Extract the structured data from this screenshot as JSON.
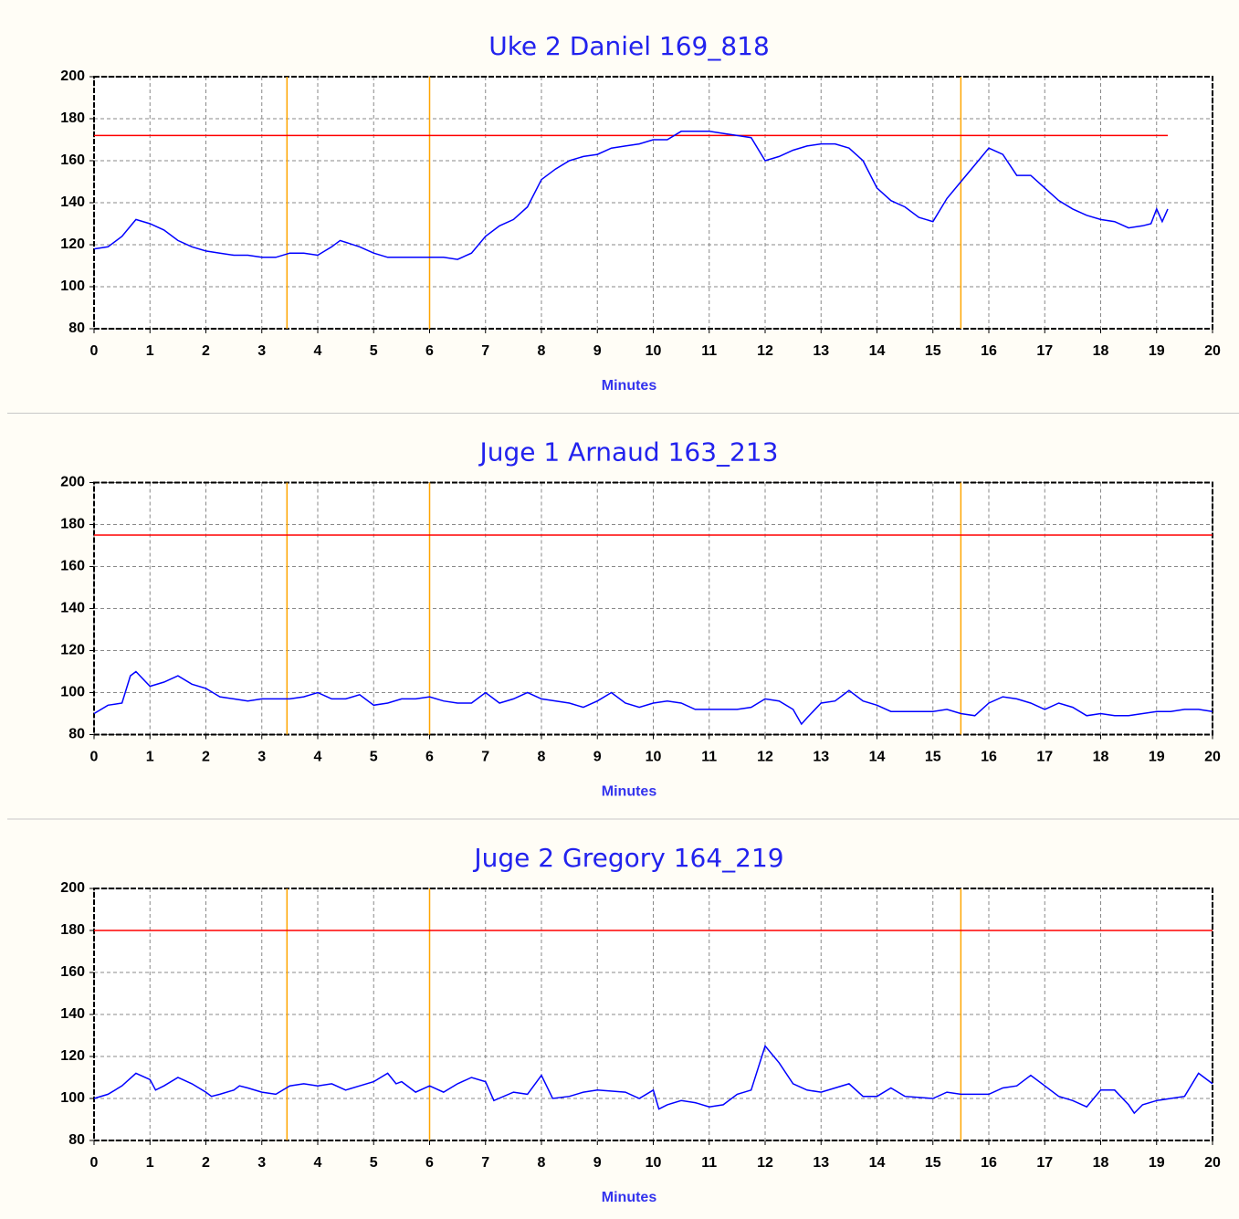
{
  "chart_data": [
    {
      "type": "line",
      "title": "Uke 2 Daniel 169_818",
      "xlabel": "Minutes",
      "xlim": [
        0,
        20
      ],
      "xticks": [
        0,
        1,
        2,
        3,
        4,
        5,
        6,
        7,
        8,
        9,
        10,
        11,
        12,
        13,
        14,
        15,
        16,
        17,
        18,
        19,
        20
      ],
      "ylim": [
        80,
        200
      ],
      "yticks": [
        80,
        100,
        120,
        140,
        160,
        180,
        200
      ],
      "grid": true,
      "threshold": 172,
      "threshold_color": "#ff0000",
      "threshold_end": 19.2,
      "markers": [
        3.45,
        6,
        15.5
      ],
      "marker_color": "#ffa500",
      "x": [
        0,
        0.25,
        0.5,
        0.75,
        1,
        1.25,
        1.5,
        1.75,
        2,
        2.25,
        2.5,
        2.75,
        3,
        3.25,
        3.5,
        3.75,
        4,
        4.25,
        4.4,
        4.75,
        5,
        5.25,
        5.5,
        5.75,
        6,
        6.25,
        6.5,
        6.75,
        7,
        7.25,
        7.5,
        7.75,
        8,
        8.25,
        8.5,
        8.75,
        9,
        9.25,
        9.5,
        9.75,
        10,
        10.25,
        10.5,
        10.75,
        11,
        11.25,
        11.5,
        11.75,
        12,
        12.25,
        12.5,
        12.75,
        13,
        13.25,
        13.5,
        13.75,
        14,
        14.25,
        14.5,
        14.75,
        15,
        15.25,
        15.5,
        15.75,
        16,
        16.25,
        16.5,
        16.75,
        17,
        17.25,
        17.5,
        17.75,
        18,
        18.25,
        18.5,
        18.75,
        18.9,
        19,
        19.1,
        19.2
      ],
      "series": [
        {
          "color": "#0000ff",
          "values": [
            118,
            119,
            124,
            132,
            130,
            127,
            122,
            119,
            117,
            116,
            115,
            115,
            114,
            114,
            116,
            116,
            115,
            119,
            122,
            119,
            116,
            114,
            114,
            114,
            114,
            114,
            113,
            116,
            124,
            129,
            132,
            138,
            151,
            156,
            160,
            162,
            163,
            166,
            167,
            168,
            170,
            170,
            174,
            174,
            174,
            173,
            172,
            171,
            160,
            162,
            165,
            167,
            168,
            168,
            166,
            160,
            147,
            141,
            138,
            133,
            131,
            142,
            150,
            158,
            166,
            163,
            153,
            153,
            147,
            141,
            137,
            134,
            132,
            131,
            128,
            129,
            130,
            137,
            131,
            137
          ]
        }
      ]
    },
    {
      "type": "line",
      "title": "Juge 1 Arnaud 163_213",
      "xlabel": "Minutes",
      "xlim": [
        0,
        20
      ],
      "xticks": [
        0,
        1,
        2,
        3,
        4,
        5,
        6,
        7,
        8,
        9,
        10,
        11,
        12,
        13,
        14,
        15,
        16,
        17,
        18,
        19,
        20
      ],
      "ylim": [
        80,
        200
      ],
      "yticks": [
        80,
        100,
        120,
        140,
        160,
        180,
        200
      ],
      "grid": true,
      "threshold": 175,
      "threshold_color": "#ff0000",
      "threshold_end": 20,
      "markers": [
        3.45,
        6,
        15.5
      ],
      "marker_color": "#ffa500",
      "x": [
        0,
        0.25,
        0.5,
        0.65,
        0.75,
        1,
        1.25,
        1.5,
        1.75,
        2,
        2.25,
        2.5,
        2.75,
        3,
        3.5,
        3.75,
        4,
        4.25,
        4.5,
        4.75,
        5,
        5.25,
        5.5,
        5.75,
        6,
        6.25,
        6.5,
        6.75,
        7,
        7.25,
        7.5,
        7.75,
        8,
        8.5,
        8.75,
        9,
        9.25,
        9.5,
        9.75,
        10,
        10.25,
        10.5,
        10.75,
        11,
        11.5,
        11.75,
        12,
        12.25,
        12.5,
        12.65,
        12.75,
        13,
        13.25,
        13.5,
        13.75,
        14,
        14.25,
        14.5,
        15,
        15.25,
        15.5,
        15.75,
        16,
        16.25,
        16.5,
        16.75,
        17,
        17.25,
        17.5,
        17.75,
        18,
        18.25,
        18.5,
        18.75,
        19,
        19.25,
        19.5,
        19.75,
        20
      ],
      "series": [
        {
          "color": "#0000ff",
          "values": [
            90,
            94,
            95,
            108,
            110,
            103,
            105,
            108,
            104,
            102,
            98,
            97,
            96,
            97,
            97,
            98,
            100,
            97,
            97,
            99,
            94,
            95,
            97,
            97,
            98,
            96,
            95,
            95,
            100,
            95,
            97,
            100,
            97,
            95,
            93,
            96,
            100,
            95,
            93,
            95,
            96,
            95,
            92,
            92,
            92,
            93,
            97,
            96,
            92,
            85,
            88,
            95,
            96,
            101,
            96,
            94,
            91,
            91,
            91,
            92,
            90,
            89,
            95,
            98,
            97,
            95,
            92,
            95,
            93,
            89,
            90,
            89,
            89,
            90,
            91,
            91,
            92,
            92,
            91
          ]
        }
      ]
    },
    {
      "type": "line",
      "title": "Juge 2 Gregory 164_219",
      "xlabel": "Minutes",
      "xlim": [
        0,
        20
      ],
      "xticks": [
        0,
        1,
        2,
        3,
        4,
        5,
        6,
        7,
        8,
        9,
        10,
        11,
        12,
        13,
        14,
        15,
        16,
        17,
        18,
        19,
        20
      ],
      "ylim": [
        80,
        200
      ],
      "yticks": [
        80,
        100,
        120,
        140,
        160,
        180,
        200
      ],
      "grid": true,
      "threshold": 180,
      "threshold_color": "#ff0000",
      "threshold_end": 20,
      "markers": [
        3.45,
        6,
        15.5
      ],
      "marker_color": "#ffa500",
      "x": [
        0,
        0.25,
        0.5,
        0.75,
        1,
        1.1,
        1.25,
        1.5,
        1.75,
        2,
        2.1,
        2.25,
        2.5,
        2.6,
        2.75,
        3,
        3.25,
        3.5,
        3.75,
        4,
        4.25,
        4.5,
        4.75,
        5,
        5.25,
        5.4,
        5.5,
        5.75,
        6,
        6.25,
        6.5,
        6.75,
        7,
        7.15,
        7.5,
        7.75,
        8,
        8.2,
        8.5,
        8.75,
        9,
        9.5,
        9.75,
        10,
        10.1,
        10.25,
        10.5,
        10.75,
        11,
        11.25,
        11.5,
        11.75,
        12,
        12.25,
        12.5,
        12.75,
        13,
        13.25,
        13.5,
        13.75,
        14,
        14.25,
        14.5,
        15,
        15.25,
        15.5,
        16,
        16.25,
        16.5,
        16.75,
        17,
        17.25,
        17.5,
        17.75,
        18,
        18.25,
        18.5,
        18.6,
        18.75,
        19,
        19.25,
        19.5,
        19.75,
        20
      ],
      "series": [
        {
          "color": "#0000ff",
          "values": [
            100,
            102,
            106,
            112,
            109,
            104,
            106,
            110,
            107,
            103,
            101,
            102,
            104,
            106,
            105,
            103,
            102,
            106,
            107,
            106,
            107,
            104,
            106,
            108,
            112,
            107,
            108,
            103,
            106,
            103,
            107,
            110,
            108,
            99,
            103,
            102,
            111,
            100,
            101,
            103,
            104,
            103,
            100,
            104,
            95,
            97,
            99,
            98,
            96,
            97,
            102,
            104,
            125,
            117,
            107,
            104,
            103,
            105,
            107,
            101,
            101,
            105,
            101,
            100,
            103,
            102,
            102,
            105,
            106,
            111,
            106,
            101,
            99,
            96,
            104,
            104,
            97,
            93,
            97,
            99,
            100,
            101,
            112,
            107
          ]
        }
      ]
    }
  ]
}
